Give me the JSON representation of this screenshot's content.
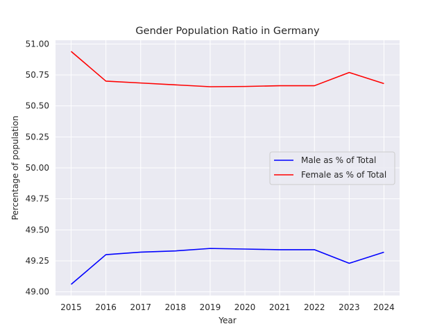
{
  "chart_data": {
    "type": "line",
    "title": "Gender Population Ratio in Germany",
    "xlabel": "Year",
    "ylabel": "Percentage of population",
    "x": [
      2015,
      2016,
      2017,
      2018,
      2019,
      2020,
      2021,
      2022,
      2023,
      2024
    ],
    "x_tick_labels": [
      "2015",
      "2016",
      "2017",
      "2018",
      "2019",
      "2020",
      "2021",
      "2022",
      "2023",
      "2024"
    ],
    "y_ticks": [
      49.0,
      49.25,
      49.5,
      49.75,
      50.0,
      50.25,
      50.5,
      50.75,
      51.0
    ],
    "y_tick_labels": [
      "49.00",
      "49.25",
      "49.50",
      "49.75",
      "50.00",
      "50.25",
      "50.50",
      "50.75",
      "51.00"
    ],
    "ylim": [
      48.97,
      51.03
    ],
    "xlim": [
      2014.55,
      2024.45
    ],
    "grid": true,
    "legend_position": "center-right",
    "series": [
      {
        "name": "Male as % of Total",
        "color": "#0000ff",
        "values": [
          49.06,
          49.3,
          49.32,
          49.33,
          49.35,
          49.345,
          49.34,
          49.34,
          49.23,
          49.32
        ]
      },
      {
        "name": "Female as % of Total",
        "color": "#ff0000",
        "values": [
          50.94,
          50.7,
          50.685,
          50.67,
          50.655,
          50.657,
          50.663,
          50.663,
          50.77,
          50.68
        ]
      }
    ]
  }
}
